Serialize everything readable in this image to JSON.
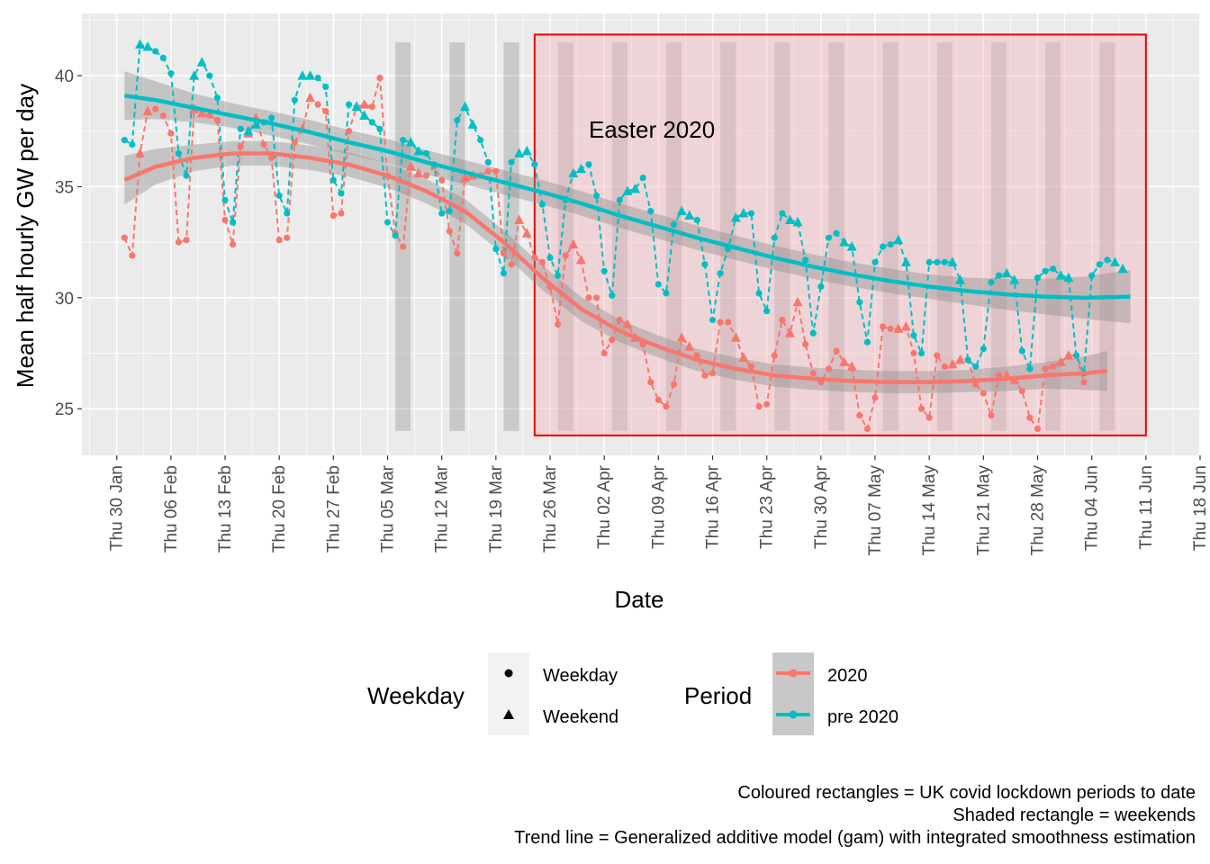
{
  "chart_data": {
    "type": "line",
    "xlabel": "Date",
    "ylabel": "Mean half hourly GW per day",
    "x_ticks": [
      "Thu 30 Jan",
      "Thu 06 Feb",
      "Thu 13 Feb",
      "Thu 20 Feb",
      "Thu 27 Feb",
      "Thu 05 Mar",
      "Thu 12 Mar",
      "Thu 19 Mar",
      "Thu 26 Mar",
      "Thu 02 Apr",
      "Thu 09 Apr",
      "Thu 16 Apr",
      "Thu 23 Apr",
      "Thu 30 Apr",
      "Thu 07 May",
      "Thu 14 May",
      "Thu 21 May",
      "Thu 28 May",
      "Thu 04 Jun",
      "Thu 11 Jun",
      "Thu 18 Jun"
    ],
    "xlim_days": [
      -4.5,
      140
    ],
    "y_ticks": [
      25,
      30,
      35,
      40
    ],
    "ylim": [
      22.9,
      42.8
    ],
    "grid": true,
    "annotation": {
      "text": "Easter 2020",
      "x_day": 61,
      "y": 37.2
    },
    "lockdown_rect": {
      "x_start_day": 54,
      "x_end_day": 133,
      "y_min": 23.8,
      "y_max": 41.85,
      "fill": "#f4b7bf",
      "stroke": "#ee0000"
    },
    "weekend_bands": [
      [
        36,
        38
      ],
      [
        43,
        45
      ],
      [
        50,
        52
      ],
      [
        57,
        59
      ],
      [
        64,
        66
      ],
      [
        71,
        73
      ],
      [
        78,
        80
      ],
      [
        85,
        87
      ],
      [
        92,
        94
      ],
      [
        99,
        101
      ],
      [
        106,
        108
      ],
      [
        113,
        115
      ],
      [
        120,
        122
      ],
      [
        127,
        129
      ]
    ],
    "weekend_band_ylim": [
      24.0,
      41.5
    ],
    "series": [
      {
        "name": "2020",
        "color": "#f8766d",
        "start_day": 1,
        "values": [
          32.7,
          31.9,
          36.5,
          38.4,
          38.5,
          38.2,
          37.4,
          32.5,
          32.6,
          38.5,
          38.3,
          38.2,
          38.0,
          33.5,
          32.4,
          36.8,
          37.4,
          38.1,
          36.9,
          36.3,
          32.6,
          32.7,
          37.0,
          37.6,
          39.0,
          38.7,
          38.4,
          33.7,
          33.8,
          37.5,
          38.6,
          38.7,
          38.6,
          39.9,
          35.5,
          32.9,
          32.3,
          35.9,
          35.6,
          35.5,
          35.9,
          35.3,
          33.0,
          32.0,
          35.4,
          35.5,
          35.5,
          35.7,
          35.7,
          32.0,
          31.5,
          33.5,
          32.9,
          31.8,
          31.6,
          30.5,
          28.8,
          31.9,
          32.4,
          31.7,
          30.0,
          30.0,
          27.5,
          28.1,
          29.0,
          28.8,
          28.2,
          27.9,
          26.2,
          25.4,
          25.1,
          26.1,
          28.2,
          27.8,
          27.4,
          26.5,
          26.6,
          28.9,
          28.9,
          28.2,
          27.3,
          26.9,
          25.1,
          25.2,
          27.4,
          29.0,
          28.4,
          29.8,
          27.9,
          26.6,
          26.2,
          26.8,
          27.6,
          27.1,
          26.9,
          24.7,
          24.1,
          25.5,
          28.7,
          28.6,
          28.6,
          28.7,
          27.5,
          25.0,
          24.6,
          27.4,
          26.9,
          27.0,
          27.2,
          27.2,
          26.1,
          25.7,
          24.7,
          26.5,
          26.5,
          26.3,
          25.8,
          24.6,
          24.1,
          26.8,
          26.9,
          27.1,
          27.4,
          27.4,
          26.2
        ],
        "weekday_marker_days": [],
        "trend": [
          [
            1,
            35.3
          ],
          [
            5,
            35.9
          ],
          [
            10,
            36.3
          ],
          [
            15,
            36.5
          ],
          [
            20,
            36.5
          ],
          [
            25,
            36.3
          ],
          [
            30,
            36.0
          ],
          [
            35,
            35.5
          ],
          [
            40,
            34.8
          ],
          [
            45,
            33.9
          ],
          [
            50,
            32.5
          ],
          [
            55,
            30.9
          ],
          [
            60,
            29.5
          ],
          [
            65,
            28.5
          ],
          [
            70,
            27.8
          ],
          [
            75,
            27.2
          ],
          [
            80,
            26.8
          ],
          [
            85,
            26.5
          ],
          [
            90,
            26.35
          ],
          [
            95,
            26.25
          ],
          [
            100,
            26.2
          ],
          [
            105,
            26.2
          ],
          [
            110,
            26.25
          ],
          [
            115,
            26.35
          ],
          [
            120,
            26.5
          ],
          [
            125,
            26.6
          ],
          [
            128,
            26.7
          ]
        ],
        "band_halfwidth": [
          1.1,
          0.8,
          0.6,
          0.55,
          0.55,
          0.55,
          0.55,
          0.55,
          0.55,
          0.55,
          0.55,
          0.55,
          0.55,
          0.5,
          0.5,
          0.5,
          0.5,
          0.5,
          0.5,
          0.5,
          0.5,
          0.5,
          0.5,
          0.55,
          0.6,
          0.75,
          0.9
        ]
      },
      {
        "name": "pre 2020",
        "color": "#00bfc4",
        "start_day": 1,
        "values": [
          37.1,
          36.9,
          41.4,
          41.3,
          41.1,
          40.8,
          40.1,
          36.5,
          35.5,
          40.0,
          40.6,
          40.0,
          39.0,
          34.4,
          33.4,
          37.6,
          37.5,
          37.8,
          37.9,
          38.1,
          34.6,
          33.8,
          38.9,
          40.0,
          40.0,
          39.9,
          39.5,
          35.3,
          34.7,
          38.7,
          38.6,
          38.2,
          37.9,
          37.6,
          33.4,
          32.8,
          37.1,
          37.0,
          36.6,
          36.5,
          36.0,
          33.8,
          33.9,
          38.0,
          38.6,
          37.8,
          37.1,
          36.1,
          32.2,
          31.1,
          36.1,
          36.5,
          36.6,
          36.0,
          34.2,
          31.8,
          31.0,
          34.4,
          35.6,
          35.8,
          36.0,
          34.6,
          31.2,
          30.1,
          34.4,
          34.8,
          34.9,
          35.4,
          33.9,
          30.6,
          30.2,
          33.3,
          33.9,
          33.7,
          33.5,
          31.5,
          29.0,
          31.1,
          32.2,
          33.6,
          33.8,
          33.8,
          30.2,
          29.4,
          32.7,
          33.8,
          33.5,
          33.4,
          31.7,
          28.4,
          30.5,
          32.7,
          32.9,
          32.5,
          32.3,
          29.8,
          28.0,
          31.6,
          32.3,
          32.4,
          32.6,
          31.6,
          28.3,
          27.5,
          31.6,
          31.6,
          31.6,
          31.6,
          30.8,
          27.2,
          26.9,
          27.7,
          30.7,
          31.0,
          31.1,
          30.8,
          27.6,
          26.8,
          30.9,
          31.2,
          31.3,
          31.0,
          30.9,
          27.4,
          26.6,
          31.0,
          31.5,
          31.7,
          31.6,
          31.3
        ],
        "trend": [
          [
            1,
            39.1
          ],
          [
            5,
            38.9
          ],
          [
            10,
            38.55
          ],
          [
            15,
            38.2
          ],
          [
            20,
            37.85
          ],
          [
            25,
            37.45
          ],
          [
            30,
            37.0
          ],
          [
            35,
            36.6
          ],
          [
            40,
            36.1
          ],
          [
            45,
            35.65
          ],
          [
            50,
            35.2
          ],
          [
            55,
            34.75
          ],
          [
            60,
            34.25
          ],
          [
            65,
            33.7
          ],
          [
            70,
            33.2
          ],
          [
            75,
            32.7
          ],
          [
            80,
            32.25
          ],
          [
            85,
            31.8
          ],
          [
            90,
            31.4
          ],
          [
            95,
            31.05
          ],
          [
            100,
            30.75
          ],
          [
            105,
            30.5
          ],
          [
            110,
            30.3
          ],
          [
            115,
            30.15
          ],
          [
            120,
            30.05
          ],
          [
            125,
            30.0
          ],
          [
            131,
            30.05
          ]
        ],
        "band_halfwidth": [
          1.1,
          0.85,
          0.65,
          0.55,
          0.55,
          0.55,
          0.55,
          0.55,
          0.55,
          0.55,
          0.55,
          0.55,
          0.55,
          0.55,
          0.55,
          0.55,
          0.55,
          0.55,
          0.55,
          0.55,
          0.55,
          0.55,
          0.6,
          0.7,
          0.8,
          0.95,
          1.2
        ]
      }
    ],
    "weekend_day_offsets": [
      3,
      4
    ],
    "legend": {
      "weekday_title": "Weekday",
      "weekday_items": [
        "Weekday",
        "Weekend"
      ],
      "period_title": "Period",
      "period_items": [
        "2020",
        "pre 2020"
      ],
      "placement": "bottom"
    },
    "captions": [
      "Coloured rectangles = UK covid lockdown periods to date",
      "Shaded rectangle = weekends",
      "Trend line = Generalized additive model (gam) with integrated smoothness estimation"
    ]
  }
}
